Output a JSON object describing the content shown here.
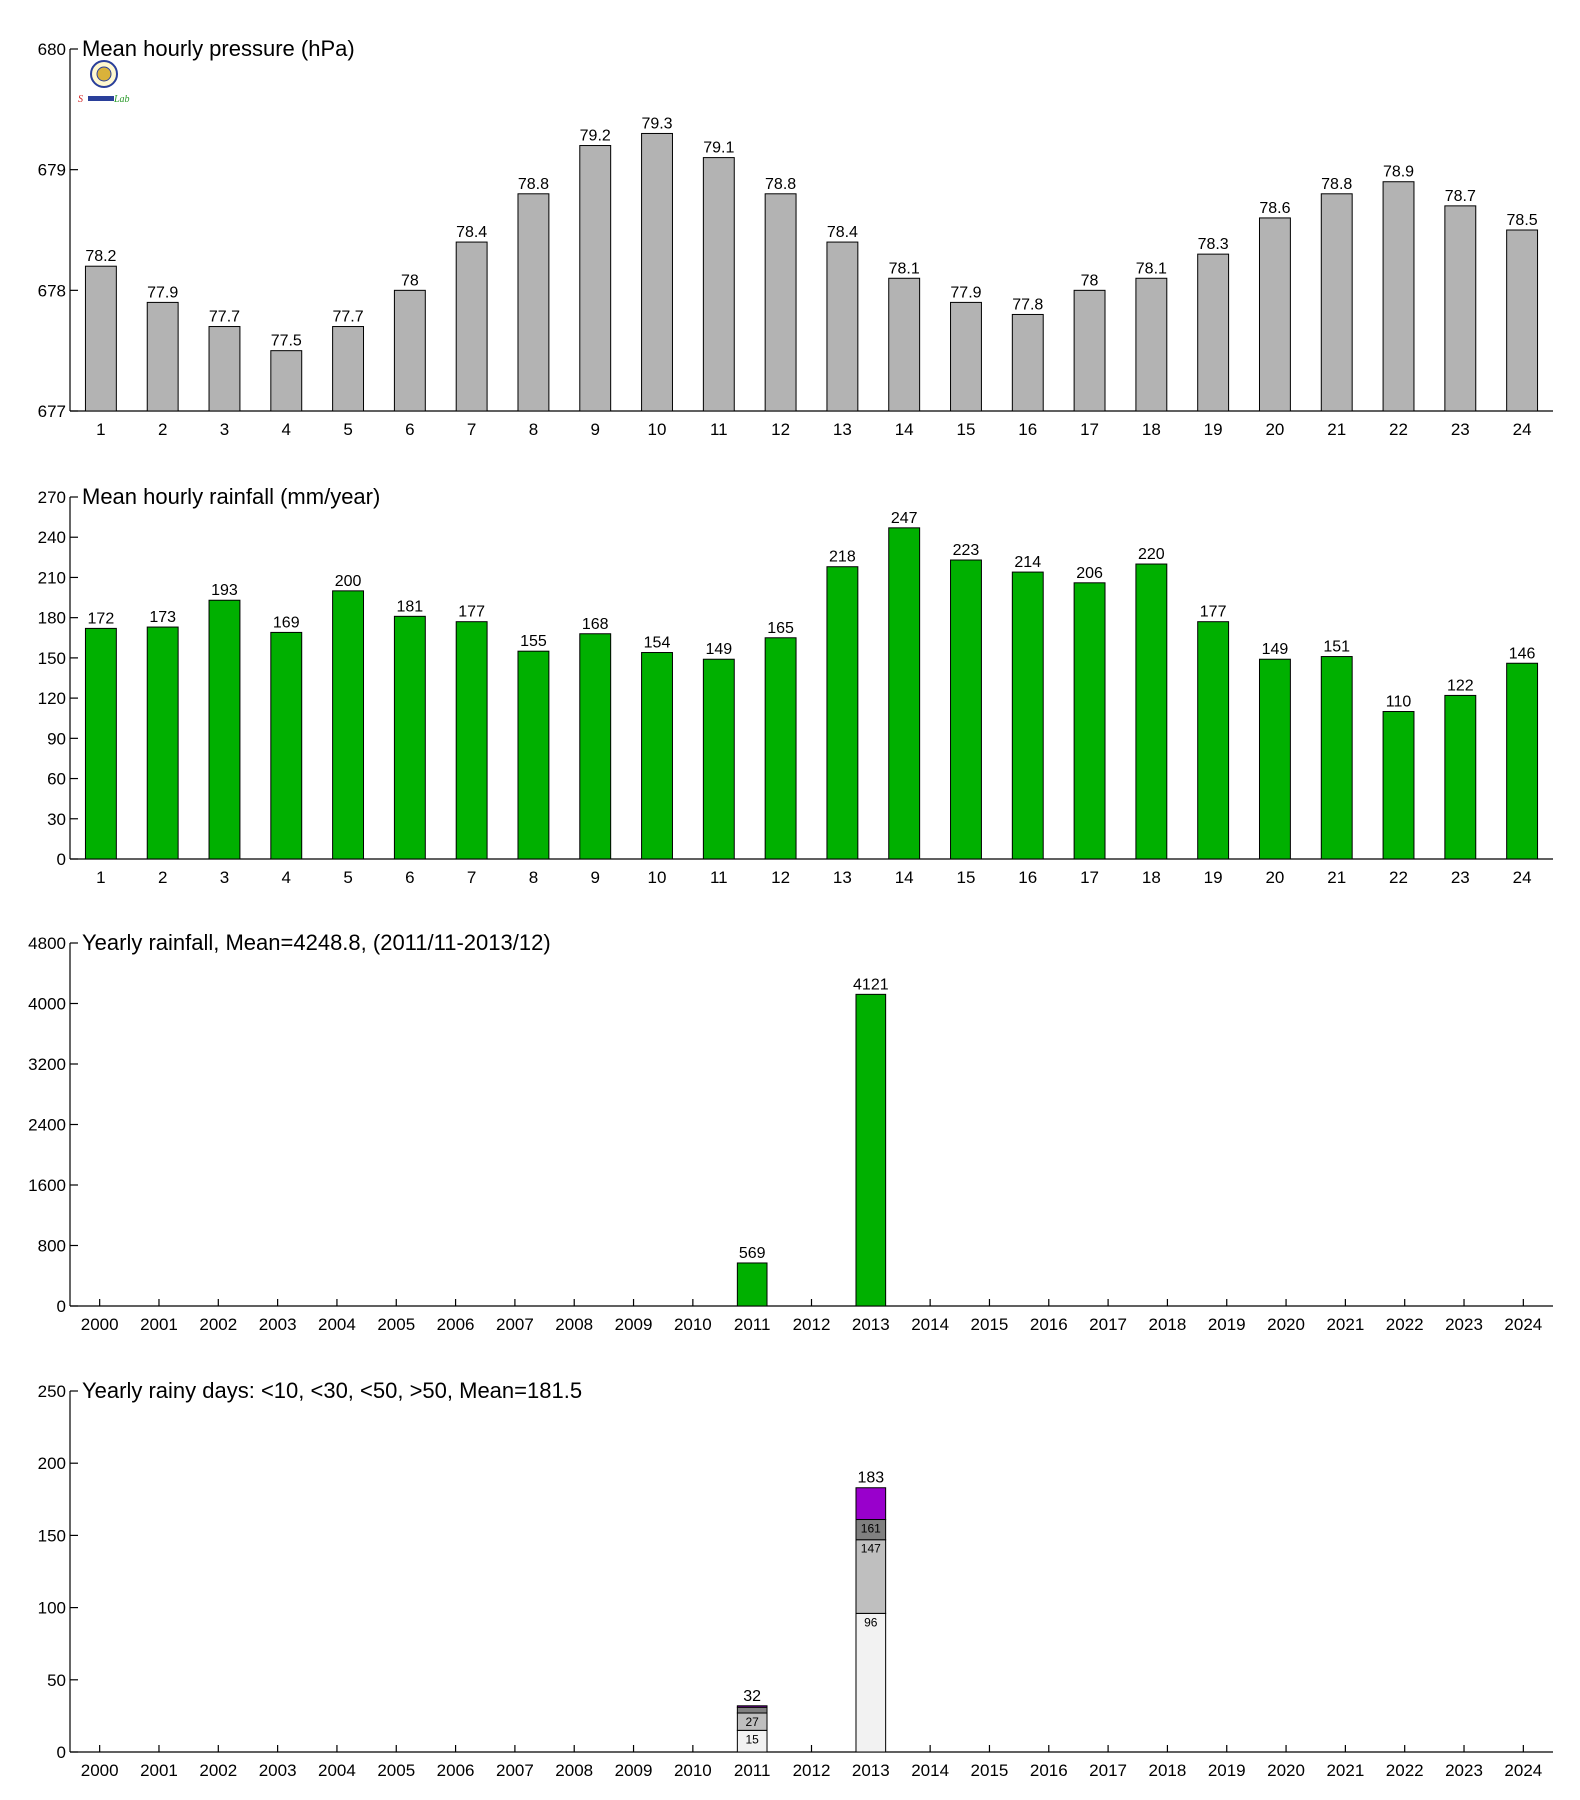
{
  "colors": {
    "pressure_bar": "#b3b3b3",
    "rain_bar": "#00b000",
    "stack_lt10": "#f2f2f2",
    "stack_lt30": "#bfbfbf",
    "stack_lt50": "#808080",
    "stack_gt50": "#9900cc"
  },
  "logo": {
    "icon": "university-seal-icon",
    "text_left": "S",
    "text_right": "Lab"
  },
  "chart_data": [
    {
      "type": "bar",
      "title": "Mean hourly pressure (hPa)",
      "categories": [
        "1",
        "2",
        "3",
        "4",
        "5",
        "6",
        "7",
        "8",
        "9",
        "10",
        "11",
        "12",
        "13",
        "14",
        "15",
        "16",
        "17",
        "18",
        "19",
        "20",
        "21",
        "22",
        "23",
        "24"
      ],
      "values": [
        678.2,
        677.9,
        677.7,
        677.5,
        677.7,
        678.0,
        678.4,
        678.8,
        679.2,
        679.3,
        679.1,
        678.8,
        678.4,
        678.1,
        677.9,
        677.8,
        678.0,
        678.1,
        678.3,
        678.6,
        678.8,
        678.9,
        678.7,
        678.5
      ],
      "data_labels": [
        "78.2",
        "77.9",
        "77.7",
        "77.5",
        "77.7",
        "78",
        "78.4",
        "78.8",
        "79.2",
        "79.3",
        "79.1",
        "78.8",
        "78.4",
        "78.1",
        "77.9",
        "77.8",
        "78",
        "78.1",
        "78.3",
        "78.6",
        "78.8",
        "78.9",
        "78.7",
        "78.5"
      ],
      "ylim": [
        677,
        680
      ],
      "yticks": [
        677,
        678,
        679,
        680
      ],
      "ytick_labels": [
        "677",
        "678",
        "679",
        "680"
      ]
    },
    {
      "type": "bar",
      "title": "Mean hourly rainfall (mm/year)",
      "categories": [
        "1",
        "2",
        "3",
        "4",
        "5",
        "6",
        "7",
        "8",
        "9",
        "10",
        "11",
        "12",
        "13",
        "14",
        "15",
        "16",
        "17",
        "18",
        "19",
        "20",
        "21",
        "22",
        "23",
        "24"
      ],
      "values": [
        172,
        173,
        193,
        169,
        200,
        181,
        177,
        155,
        168,
        154,
        149,
        165,
        218,
        247,
        223,
        214,
        206,
        220,
        177,
        149,
        151,
        110,
        122,
        146
      ],
      "data_labels": [
        "172",
        "173",
        "193",
        "169",
        "200",
        "181",
        "177",
        "155",
        "168",
        "154",
        "149",
        "165",
        "218",
        "247",
        "223",
        "214",
        "206",
        "220",
        "177",
        "149",
        "151",
        "110",
        "122",
        "146"
      ],
      "ylim": [
        0,
        270
      ],
      "yticks": [
        0,
        30,
        60,
        90,
        120,
        150,
        180,
        210,
        240,
        270
      ],
      "ytick_labels": [
        "0",
        "30",
        "60",
        "90",
        "120",
        "150",
        "180",
        "210",
        "240",
        "270"
      ]
    },
    {
      "type": "bar",
      "title": "Yearly rainfall, Mean=4248.8, (2011/11-2013/12)",
      "categories": [
        "2000",
        "2001",
        "2002",
        "2003",
        "2004",
        "2005",
        "2006",
        "2007",
        "2008",
        "2009",
        "2010",
        "2011",
        "2012",
        "2013",
        "2014",
        "2015",
        "2016",
        "2017",
        "2018",
        "2019",
        "2020",
        "2021",
        "2022",
        "2023",
        "2024"
      ],
      "values": [
        null,
        null,
        null,
        null,
        null,
        null,
        null,
        null,
        null,
        null,
        null,
        569,
        null,
        4121,
        null,
        null,
        null,
        null,
        null,
        null,
        null,
        null,
        null,
        null,
        null
      ],
      "data_labels": [
        "",
        "",
        "",
        "",
        "",
        "",
        "",
        "",
        "",
        "",
        "",
        "569",
        "",
        "4121",
        "",
        "",
        "",
        "",
        "",
        "",
        "",
        "",
        "",
        "",
        ""
      ],
      "ylim": [
        0,
        4800
      ],
      "yticks": [
        0,
        800,
        1600,
        2400,
        3200,
        4000,
        4800
      ],
      "ytick_labels": [
        "0",
        "800",
        "1600",
        "2400",
        "3200",
        "4000",
        "4800"
      ]
    },
    {
      "type": "bar",
      "stacked": true,
      "title": "Yearly rainy days: <10, <30, <50, >50, Mean=181.5",
      "categories": [
        "2000",
        "2001",
        "2002",
        "2003",
        "2004",
        "2005",
        "2006",
        "2007",
        "2008",
        "2009",
        "2010",
        "2011",
        "2012",
        "2013",
        "2014",
        "2015",
        "2016",
        "2017",
        "2018",
        "2019",
        "2020",
        "2021",
        "2022",
        "2023",
        "2024"
      ],
      "stacks": [
        {
          "category": "2011",
          "cumulative": [
            15,
            27,
            31,
            32
          ],
          "segment_labels": [
            "15",
            "27",
            "",
            ""
          ],
          "total_label": "32"
        },
        {
          "category": "2013",
          "cumulative": [
            96,
            147,
            161,
            183
          ],
          "segment_labels": [
            "96",
            "147",
            "161",
            ""
          ],
          "total_label": "183"
        }
      ],
      "ylim": [
        0,
        250
      ],
      "yticks": [
        0,
        50,
        100,
        150,
        200,
        250
      ],
      "ytick_labels": [
        "0",
        "50",
        "100",
        "150",
        "200",
        "250"
      ]
    }
  ]
}
